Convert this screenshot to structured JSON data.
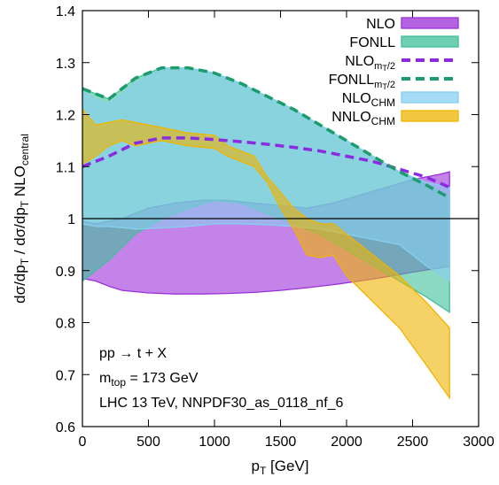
{
  "chart_data": {
    "type": "area",
    "xlim": [
      0,
      3000
    ],
    "ylim": [
      0.6,
      1.4
    ],
    "xticks": [
      0,
      500,
      1000,
      1500,
      2000,
      2500,
      3000
    ],
    "yticks": [
      0.6,
      0.7,
      0.8,
      0.9,
      1.0,
      1.1,
      1.2,
      1.3,
      1.4
    ],
    "xtick_labels": [
      "0",
      "500",
      "1000",
      "1500",
      "2000",
      "2500",
      "3000"
    ],
    "ytick_labels": [
      "0.6",
      "0.7",
      "0.8",
      "0.9",
      "1",
      "1.1",
      "1.2",
      "1.3",
      "1.4"
    ],
    "xlabel": "p_T [GeV]",
    "ylabel": "dσ/dp_T / dσ/dp_T NLO_central",
    "grid": false,
    "legend": "top-right",
    "reference_line": 1.0,
    "annotations": [
      "pp → t + X",
      "m_top = 173 GeV",
      "LHC 13 TeV, NNPDF30_as_0118_nf_6"
    ],
    "series": [
      {
        "name": "NLO",
        "kind": "band",
        "color": "#9b30d9",
        "x": [
          0,
          100,
          200,
          300,
          500,
          700,
          900,
          1100,
          1300,
          1500,
          1700,
          1900,
          2100,
          2300,
          2500,
          2700,
          2780
        ],
        "lower": [
          0.885,
          0.88,
          0.87,
          0.862,
          0.857,
          0.855,
          0.855,
          0.856,
          0.858,
          0.862,
          0.867,
          0.873,
          0.88,
          0.888,
          0.897,
          0.905,
          0.908
        ],
        "upper": [
          0.995,
          0.99,
          0.995,
          1.0,
          1.02,
          1.03,
          1.035,
          1.035,
          1.03,
          1.025,
          1.02,
          1.03,
          1.045,
          1.06,
          1.075,
          1.085,
          1.09
        ]
      },
      {
        "name": "FONLL",
        "kind": "band",
        "color": "#3fbf9a",
        "x": [
          0,
          200,
          400,
          600,
          800,
          1000,
          1200,
          1400,
          1600,
          1800,
          2000,
          2200,
          2400,
          2600,
          2780
        ],
        "lower": [
          0.88,
          0.92,
          0.97,
          1.0,
          1.02,
          1.035,
          1.03,
          1.01,
          0.99,
          0.97,
          0.94,
          0.91,
          0.88,
          0.85,
          0.82
        ],
        "upper": [
          1.25,
          1.23,
          1.27,
          1.29,
          1.29,
          1.28,
          1.26,
          1.235,
          1.21,
          1.18,
          1.15,
          1.12,
          1.09,
          1.065,
          1.04
        ]
      },
      {
        "name": "NLO_mT/2",
        "kind": "line",
        "dashed": true,
        "color": "#8a2be2",
        "x": [
          0,
          200,
          400,
          600,
          800,
          1000,
          1200,
          1400,
          1600,
          1800,
          2000,
          2200,
          2400,
          2600,
          2780
        ],
        "y": [
          1.1,
          1.12,
          1.145,
          1.155,
          1.155,
          1.152,
          1.148,
          1.143,
          1.137,
          1.13,
          1.12,
          1.11,
          1.095,
          1.08,
          1.06
        ]
      },
      {
        "name": "FONLL_mT/2",
        "kind": "line",
        "dashed": true,
        "color": "#1a9c6c",
        "x": [
          0,
          200,
          400,
          600,
          800,
          1000,
          1200,
          1400,
          1600,
          1800,
          2000,
          2200,
          2400,
          2600,
          2780
        ],
        "y": [
          1.25,
          1.23,
          1.27,
          1.29,
          1.29,
          1.28,
          1.26,
          1.235,
          1.21,
          1.18,
          1.15,
          1.12,
          1.09,
          1.065,
          1.04
        ]
      },
      {
        "name": "NLO_CHM",
        "kind": "band",
        "color": "#87cff0",
        "x": [
          0,
          100,
          200,
          400,
          600,
          800,
          1000,
          1200,
          1400,
          1600,
          1800,
          2000,
          2200,
          2400,
          2500,
          2600,
          2780
        ],
        "lower": [
          0.99,
          0.985,
          0.985,
          0.98,
          0.982,
          0.985,
          0.99,
          0.99,
          0.988,
          0.985,
          0.98,
          0.97,
          0.96,
          0.95,
          0.93,
          0.91,
          0.88
        ],
        "upper": [
          1.245,
          1.23,
          1.22,
          1.26,
          1.29,
          1.29,
          1.28,
          1.26,
          1.235,
          1.21,
          1.18,
          1.15,
          1.12,
          1.09,
          1.08,
          1.07,
          1.06
        ]
      },
      {
        "name": "NNLO_CHM",
        "kind": "band",
        "color": "#f0b400",
        "x": [
          0,
          100,
          200,
          300,
          400,
          600,
          800,
          1000,
          1100,
          1200,
          1300,
          1400,
          1500,
          1600,
          1700,
          1800,
          1900,
          2000,
          2200,
          2400,
          2600,
          2780
        ],
        "lower": [
          1.105,
          1.12,
          1.14,
          1.15,
          1.14,
          1.15,
          1.14,
          1.135,
          1.12,
          1.11,
          1.1,
          1.07,
          1.02,
          0.98,
          0.93,
          0.925,
          0.93,
          0.89,
          0.84,
          0.79,
          0.72,
          0.655
        ],
        "upper": [
          1.21,
          1.18,
          1.185,
          1.19,
          1.185,
          1.175,
          1.165,
          1.16,
          1.14,
          1.13,
          1.12,
          1.08,
          1.05,
          1.02,
          1.0,
          0.99,
          0.99,
          0.97,
          0.93,
          0.89,
          0.84,
          0.79
        ]
      }
    ]
  }
}
